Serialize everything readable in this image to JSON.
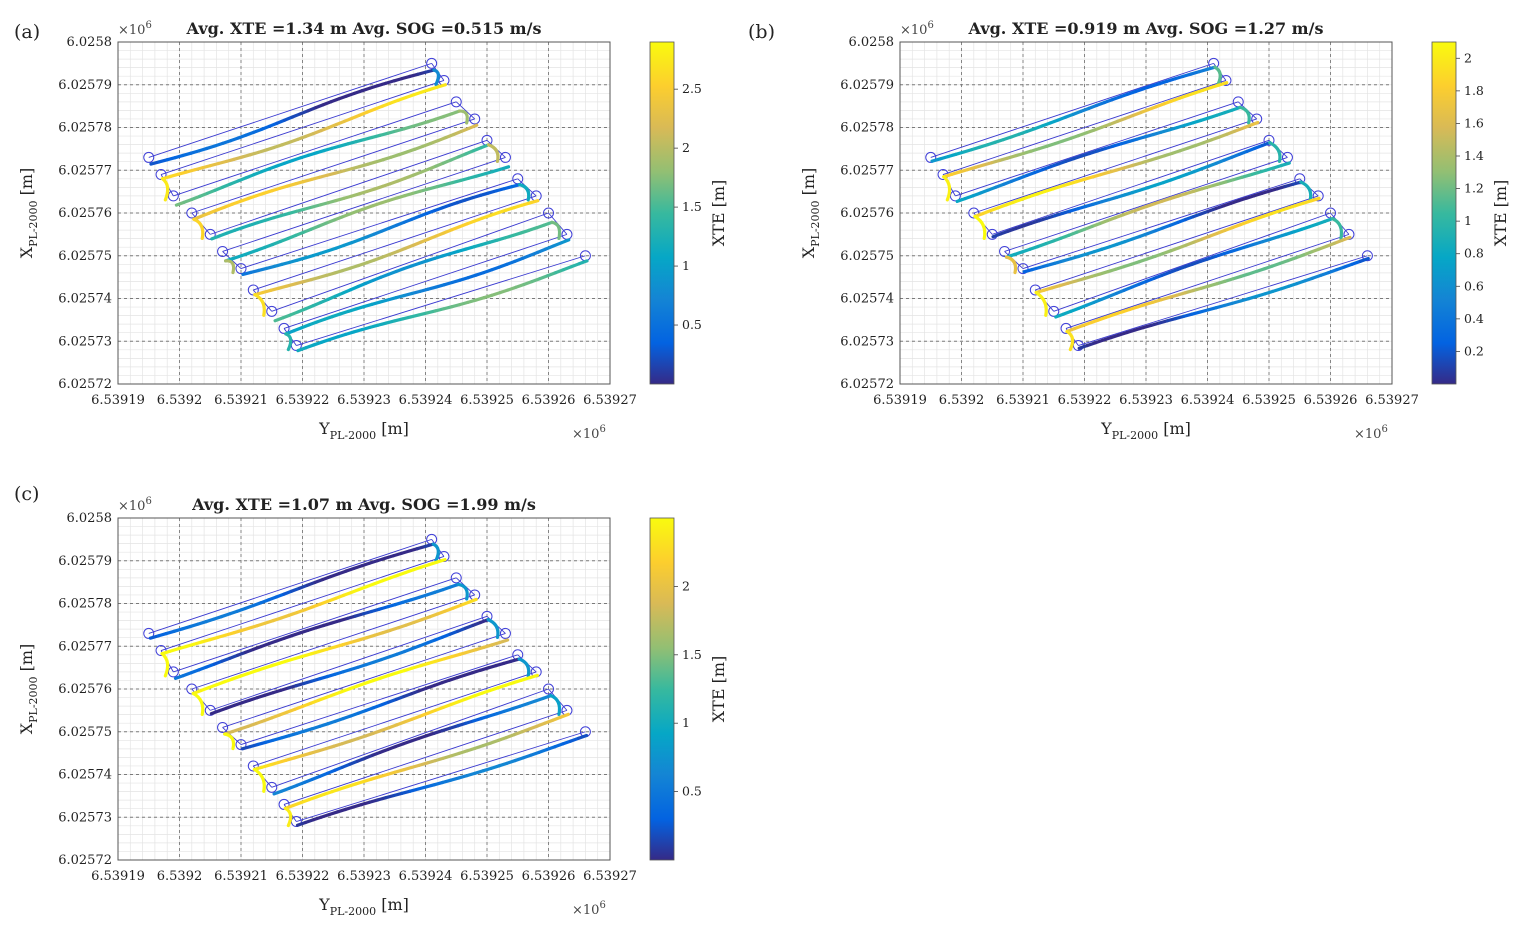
{
  "figure": {
    "panel_ids": [
      "a",
      "b",
      "c"
    ]
  },
  "chart_data": [
    {
      "panel": "(a)",
      "type": "scatter",
      "title": "Avg. XTE =1.34 m Avg. SOG =0.515 m/s",
      "xlabel": "Y",
      "xlabel_sub": "PL-2000",
      "xlabel_unit": " [m]",
      "ylabel": "X",
      "ylabel_sub": "PL-2000",
      "ylabel_unit": " [m]",
      "x_exponent": "×10",
      "x_exponent_power": "6",
      "y_exponent": "×10",
      "y_exponent_power": "6",
      "xlim": [
        6.53919,
        6.53927
      ],
      "ylim": [
        6.02572,
        6.0258
      ],
      "x_ticks": [
        6.53919,
        6.5392,
        6.53921,
        6.53922,
        6.53923,
        6.53924,
        6.53925,
        6.53926,
        6.53927
      ],
      "x_tick_labels": [
        "6.53919",
        "6.5392",
        "6.53921",
        "6.53922",
        "6.53923",
        "6.53924",
        "6.53925",
        "6.53926",
        "6.53927"
      ],
      "y_ticks": [
        6.02572,
        6.02573,
        6.02574,
        6.02575,
        6.02576,
        6.02577,
        6.02578,
        6.02579,
        6.0258
      ],
      "y_tick_labels": [
        "6.02572",
        "6.02573",
        "6.02574",
        "6.02575",
        "6.02576",
        "6.02577",
        "6.02578",
        "6.02579",
        "6.0258"
      ],
      "grid": true,
      "colorbar": {
        "label": "XTE [m]",
        "range": [
          0,
          2.9
        ],
        "ticks": [
          0.5,
          1,
          1.5,
          2,
          2.5
        ],
        "tick_labels": [
          "0.5",
          "1",
          "1.5",
          "2",
          "2.5"
        ]
      },
      "waypoints": [
        [
          6.539195,
          6.025773
        ],
        [
          6.539241,
          6.025795
        ],
        [
          6.539243,
          6.025791
        ],
        [
          6.539197,
          6.025769
        ],
        [
          6.539199,
          6.025764
        ],
        [
          6.539245,
          6.025786
        ],
        [
          6.539248,
          6.025782
        ],
        [
          6.539202,
          6.02576
        ],
        [
          6.539205,
          6.025755
        ],
        [
          6.53925,
          6.025777
        ],
        [
          6.539253,
          6.025773
        ],
        [
          6.539207,
          6.025751
        ],
        [
          6.53921,
          6.025747
        ],
        [
          6.539255,
          6.025768
        ],
        [
          6.539258,
          6.025764
        ],
        [
          6.539212,
          6.025742
        ],
        [
          6.539215,
          6.025737
        ],
        [
          6.53926,
          6.02576
        ],
        [
          6.539263,
          6.025755
        ],
        [
          6.539217,
          6.025733
        ],
        [
          6.539219,
          6.025729
        ],
        [
          6.539266,
          6.02575
        ]
      ],
      "trajectory_style": "slow",
      "xte_pattern": [
        0.2,
        2.4,
        1.4,
        2.2,
        1.6,
        1.5,
        0.6,
        2.3,
        1.2,
        0.8,
        1.4,
        2.6
      ]
    },
    {
      "panel": "(b)",
      "type": "scatter",
      "title": "Avg. XTE =0.919 m Avg. SOG =1.27 m/s",
      "xlabel": "Y",
      "xlabel_sub": "PL-2000",
      "xlabel_unit": " [m]",
      "ylabel": "X",
      "ylabel_sub": "PL-2000",
      "ylabel_unit": " [m]",
      "x_exponent": "×10",
      "x_exponent_power": "6",
      "y_exponent": "×10",
      "y_exponent_power": "6",
      "xlim": [
        6.53919,
        6.53927
      ],
      "ylim": [
        6.02572,
        6.0258
      ],
      "x_ticks": [
        6.53919,
        6.5392,
        6.53921,
        6.53922,
        6.53923,
        6.53924,
        6.53925,
        6.53926,
        6.53927
      ],
      "x_tick_labels": [
        "6.53919",
        "6.5392",
        "6.53921",
        "6.53922",
        "6.53923",
        "6.53924",
        "6.53925",
        "6.53926",
        "6.53927"
      ],
      "y_ticks": [
        6.02572,
        6.02573,
        6.02574,
        6.02575,
        6.02576,
        6.02577,
        6.02578,
        6.02579,
        6.0258
      ],
      "y_tick_labels": [
        "6.02572",
        "6.02573",
        "6.02574",
        "6.02575",
        "6.02576",
        "6.02577",
        "6.02578",
        "6.02579",
        "6.0258"
      ],
      "grid": true,
      "colorbar": {
        "label": "XTE [m]",
        "range": [
          0,
          2.1
        ],
        "ticks": [
          0.2,
          0.4,
          0.6,
          0.8,
          1,
          1.2,
          1.4,
          1.6,
          1.8,
          2
        ],
        "tick_labels": [
          "0.2",
          "0.4",
          "0.6",
          "0.8",
          "1",
          "1.2",
          "1.4",
          "1.6",
          "1.8",
          "2"
        ]
      },
      "waypoints": [
        [
          6.539195,
          6.025773
        ],
        [
          6.539241,
          6.025795
        ],
        [
          6.539243,
          6.025791
        ],
        [
          6.539197,
          6.025769
        ],
        [
          6.539199,
          6.025764
        ],
        [
          6.539245,
          6.025786
        ],
        [
          6.539248,
          6.025782
        ],
        [
          6.539202,
          6.02576
        ],
        [
          6.539205,
          6.025755
        ],
        [
          6.53925,
          6.025777
        ],
        [
          6.539253,
          6.025773
        ],
        [
          6.539207,
          6.025751
        ],
        [
          6.53921,
          6.025747
        ],
        [
          6.539255,
          6.025768
        ],
        [
          6.539258,
          6.025764
        ],
        [
          6.539212,
          6.025742
        ],
        [
          6.539215,
          6.025737
        ],
        [
          6.53926,
          6.02576
        ],
        [
          6.539263,
          6.025755
        ],
        [
          6.539217,
          6.025733
        ],
        [
          6.539219,
          6.025729
        ],
        [
          6.539266,
          6.02575
        ]
      ],
      "trajectory_style": "medium",
      "xte_pattern": [
        0.6,
        1.6,
        0.5,
        1.7,
        0.4,
        1.2,
        0.3,
        1.6,
        0.5,
        1.5,
        0.3,
        0.4
      ]
    },
    {
      "panel": "(c)",
      "type": "scatter",
      "title": "Avg. XTE =1.07 m Avg. SOG =1.99 m/s",
      "xlabel": "Y",
      "xlabel_sub": "PL-2000",
      "xlabel_unit": " [m]",
      "ylabel": "X",
      "ylabel_sub": "PL-2000",
      "ylabel_unit": " [m]",
      "x_exponent": "×10",
      "x_exponent_power": "6",
      "y_exponent": "×10",
      "y_exponent_power": "6",
      "xlim": [
        6.53919,
        6.53927
      ],
      "ylim": [
        6.02572,
        6.0258
      ],
      "x_ticks": [
        6.53919,
        6.5392,
        6.53921,
        6.53922,
        6.53923,
        6.53924,
        6.53925,
        6.53926,
        6.53927
      ],
      "x_tick_labels": [
        "6.53919",
        "6.5392",
        "6.53921",
        "6.53922",
        "6.53923",
        "6.53924",
        "6.53925",
        "6.53926",
        "6.53927"
      ],
      "y_ticks": [
        6.02572,
        6.02573,
        6.02574,
        6.02575,
        6.02576,
        6.02577,
        6.02578,
        6.02579,
        6.0258
      ],
      "y_tick_labels": [
        "6.02572",
        "6.02573",
        "6.02574",
        "6.02575",
        "6.02576",
        "6.02577",
        "6.02578",
        "6.02579",
        "6.0258"
      ],
      "grid": true,
      "colorbar": {
        "label": "XTE [m]",
        "range": [
          0,
          2.5
        ],
        "ticks": [
          0.5,
          1,
          1.5,
          2
        ],
        "tick_labels": [
          "0.5",
          "1",
          "1.5",
          "2"
        ]
      },
      "waypoints": [
        [
          6.539195,
          6.025773
        ],
        [
          6.539241,
          6.025795
        ],
        [
          6.539243,
          6.025791
        ],
        [
          6.539197,
          6.025769
        ],
        [
          6.539199,
          6.025764
        ],
        [
          6.539245,
          6.025786
        ],
        [
          6.539248,
          6.025782
        ],
        [
          6.539202,
          6.02576
        ],
        [
          6.539205,
          6.025755
        ],
        [
          6.53925,
          6.025777
        ],
        [
          6.539253,
          6.025773
        ],
        [
          6.539207,
          6.025751
        ],
        [
          6.53921,
          6.025747
        ],
        [
          6.539255,
          6.025768
        ],
        [
          6.539258,
          6.025764
        ],
        [
          6.539212,
          6.025742
        ],
        [
          6.539215,
          6.025737
        ],
        [
          6.53926,
          6.02576
        ],
        [
          6.539263,
          6.025755
        ],
        [
          6.539217,
          6.025733
        ],
        [
          6.539219,
          6.025729
        ],
        [
          6.539266,
          6.02575
        ]
      ],
      "trajectory_style": "fast",
      "xte_pattern": [
        0.2,
        2.4,
        0.2,
        2.3,
        0.2,
        2.2,
        0.2,
        2.2,
        0.3,
        2.0,
        0.3,
        0.3
      ]
    }
  ]
}
